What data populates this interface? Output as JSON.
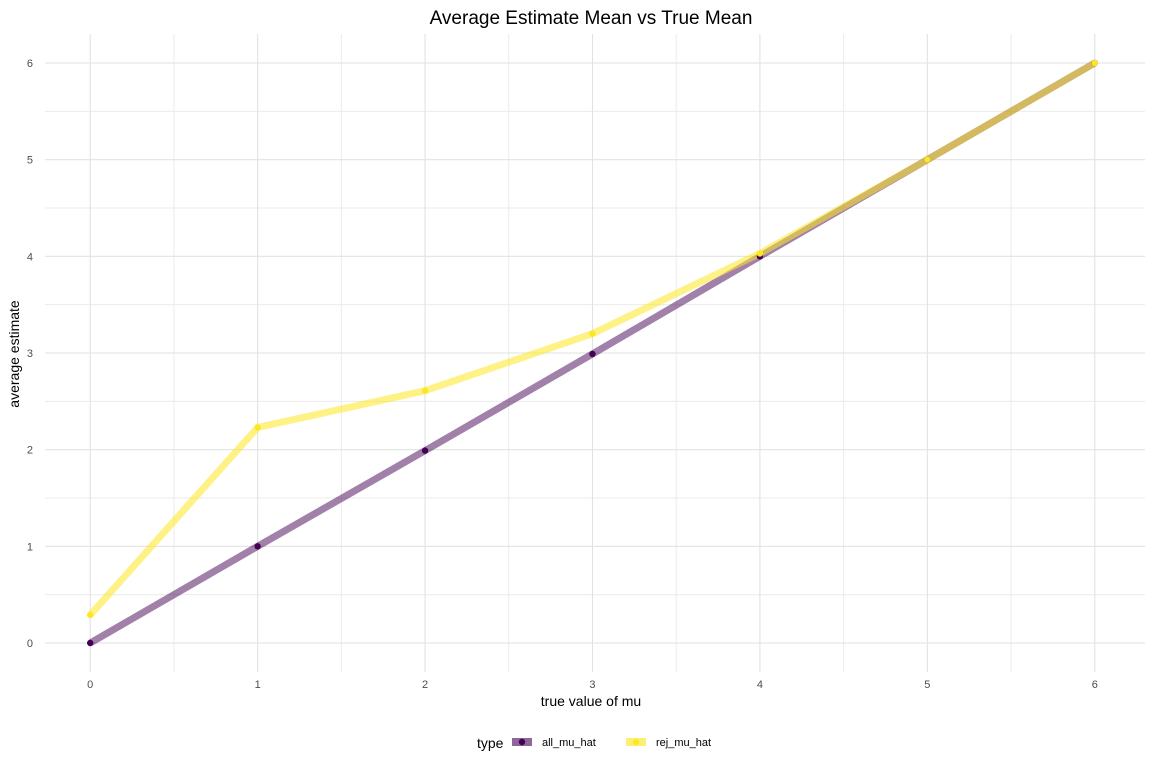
{
  "chart_data": {
    "type": "line",
    "title": "Average Estimate Mean vs True Mean",
    "xlabel": "true value of mu",
    "ylabel": "average estimate",
    "xlim": [
      -0.27,
      6.3
    ],
    "ylim": [
      -0.3,
      6.3
    ],
    "x_ticks": [
      0,
      1,
      2,
      3,
      4,
      5,
      6
    ],
    "y_ticks": [
      0,
      1,
      2,
      3,
      4,
      5,
      6
    ],
    "grid": true,
    "legend": {
      "title": "type",
      "position": "bottom"
    },
    "series": [
      {
        "name": "all_mu_hat",
        "color": "#440154",
        "x": [
          0,
          1,
          2,
          3,
          4,
          5,
          6
        ],
        "y": [
          0.0,
          1.0,
          1.99,
          2.99,
          4.0,
          5.0,
          6.0
        ]
      },
      {
        "name": "rej_mu_hat",
        "color": "#FDE725",
        "x": [
          0,
          1,
          2,
          3,
          4,
          5,
          6
        ],
        "y": [
          0.29,
          2.23,
          2.61,
          3.2,
          4.03,
          5.0,
          6.0
        ]
      }
    ]
  }
}
